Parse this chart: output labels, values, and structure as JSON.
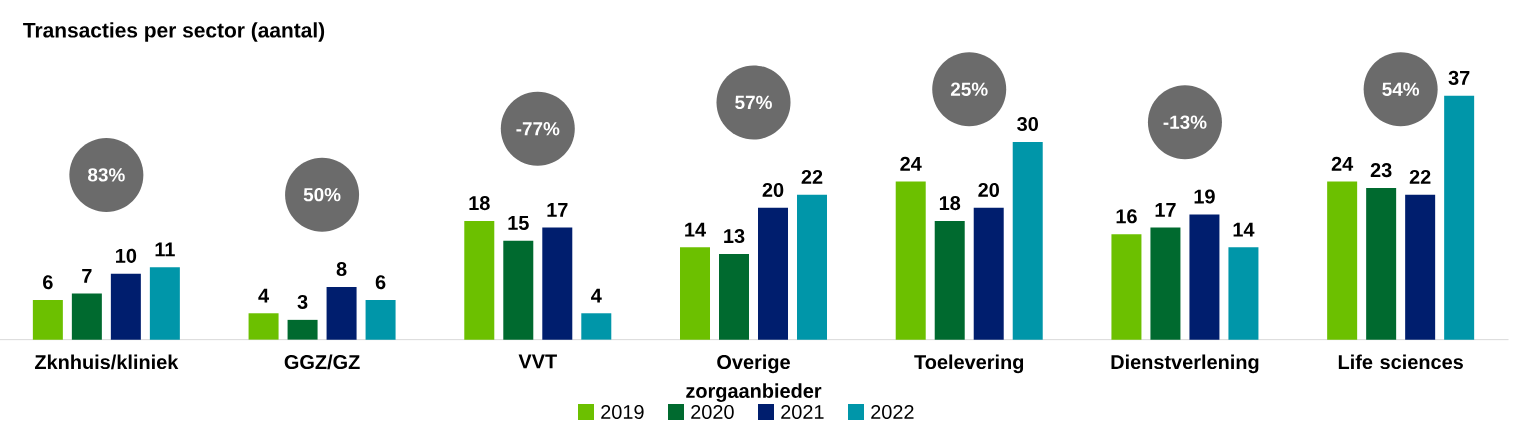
{
  "chart_data": {
    "type": "bar",
    "title": "Transacties per sector (aantal)",
    "categories": [
      "Zknhuis/kliniek",
      "GGZ/GZ",
      "VVT",
      "Overige zorgaanbieder",
      "Toelevering",
      "Dienstverlening",
      "Life sciences"
    ],
    "series": [
      {
        "name": "2019",
        "color": "#6cc000",
        "values": [
          6,
          4,
          18,
          14,
          24,
          16,
          24
        ]
      },
      {
        "name": "2020",
        "color": "#006a2f",
        "values": [
          7,
          3,
          15,
          13,
          18,
          17,
          23
        ]
      },
      {
        "name": "2021",
        "color": "#001e6e",
        "values": [
          10,
          8,
          17,
          20,
          20,
          19,
          22
        ]
      },
      {
        "name": "2022",
        "color": "#0096a9",
        "values": [
          11,
          6,
          4,
          22,
          30,
          14,
          37
        ]
      }
    ],
    "data_labels": true,
    "legend": "bottom",
    "annotations": [
      "83%",
      "50%",
      "-77%",
      "57%",
      "25%",
      "-13%",
      "54%"
    ]
  }
}
